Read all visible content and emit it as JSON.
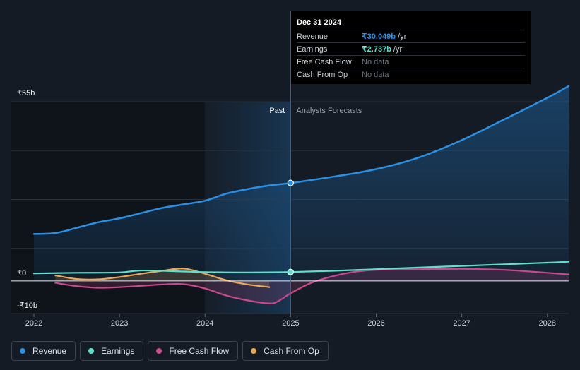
{
  "chart_data": {
    "type": "line",
    "y_axis": {
      "top_label": "₹55b",
      "zero_label": "₹0",
      "bottom_label": "-₹10b",
      "ylim": [
        -10,
        55
      ]
    },
    "x_axis": {
      "ticks": [
        "2022",
        "2023",
        "2024",
        "2025",
        "2026",
        "2027",
        "2028"
      ],
      "xlim": [
        2022.0,
        2028.25
      ]
    },
    "regions": {
      "past_label": "Past",
      "forecast_label": "Analysts Forecasts",
      "divider_x": 2025.0,
      "past_highlight_start": 2024.0
    },
    "series": [
      {
        "name": "Revenue",
        "color": "#2b90e3",
        "fill": true,
        "points": [
          [
            2022.0,
            14.4
          ],
          [
            2022.25,
            14.7
          ],
          [
            2022.5,
            16.3
          ],
          [
            2022.75,
            18.0
          ],
          [
            2023.0,
            19.2
          ],
          [
            2023.25,
            20.8
          ],
          [
            2023.5,
            22.4
          ],
          [
            2023.75,
            23.5
          ],
          [
            2024.0,
            24.6
          ],
          [
            2024.25,
            26.8
          ],
          [
            2024.5,
            28.2
          ],
          [
            2024.75,
            29.3
          ],
          [
            2025.0,
            30.05
          ],
          [
            2025.5,
            32.0
          ],
          [
            2026.0,
            34.3
          ],
          [
            2026.5,
            37.9
          ],
          [
            2027.0,
            43.2
          ],
          [
            2027.5,
            49.6
          ],
          [
            2028.0,
            56.2
          ],
          [
            2028.25,
            59.8
          ]
        ],
        "marker_at": 2025.0
      },
      {
        "name": "Earnings",
        "color": "#5ee0cf",
        "fill": false,
        "points": [
          [
            2022.0,
            2.3
          ],
          [
            2022.5,
            2.5
          ],
          [
            2023.0,
            2.6
          ],
          [
            2023.25,
            3.2
          ],
          [
            2023.75,
            2.9
          ],
          [
            2024.0,
            2.7
          ],
          [
            2024.5,
            2.6
          ],
          [
            2025.0,
            2.74
          ],
          [
            2025.5,
            3.1
          ],
          [
            2026.0,
            3.6
          ],
          [
            2026.5,
            4.1
          ],
          [
            2027.0,
            4.6
          ],
          [
            2027.5,
            5.1
          ],
          [
            2028.0,
            5.6
          ],
          [
            2028.25,
            5.9
          ]
        ],
        "marker_at": 2025.0
      },
      {
        "name": "Free Cash Flow",
        "color": "#c84a8c",
        "fill": true,
        "points": [
          [
            2022.25,
            -0.6
          ],
          [
            2022.5,
            -1.6
          ],
          [
            2022.75,
            -2.1
          ],
          [
            2023.0,
            -1.9
          ],
          [
            2023.25,
            -1.5
          ],
          [
            2023.5,
            -1.1
          ],
          [
            2023.75,
            -1.0
          ],
          [
            2024.0,
            -2.3
          ],
          [
            2024.25,
            -4.5
          ],
          [
            2024.5,
            -6.0
          ],
          [
            2024.75,
            -6.9
          ],
          [
            2024.85,
            -6.3
          ],
          [
            2025.0,
            -3.8
          ],
          [
            2025.25,
            -0.5
          ],
          [
            2025.5,
            1.5
          ],
          [
            2025.75,
            2.8
          ],
          [
            2026.0,
            3.4
          ],
          [
            2026.5,
            3.6
          ],
          [
            2027.0,
            3.7
          ],
          [
            2027.5,
            3.4
          ],
          [
            2028.0,
            2.5
          ],
          [
            2028.25,
            2.0
          ]
        ]
      },
      {
        "name": "Cash From Op",
        "color": "#e9a95c",
        "fill": true,
        "points": [
          [
            2022.25,
            1.7
          ],
          [
            2022.5,
            0.6
          ],
          [
            2022.75,
            0.5
          ],
          [
            2023.0,
            1.2
          ],
          [
            2023.25,
            2.2
          ],
          [
            2023.5,
            3.1
          ],
          [
            2023.75,
            3.8
          ],
          [
            2024.0,
            2.2
          ],
          [
            2024.25,
            0.2
          ],
          [
            2024.5,
            -1.1
          ],
          [
            2024.75,
            -1.9
          ]
        ]
      }
    ]
  },
  "tooltip": {
    "date": "Dec 31 2024",
    "rows": [
      {
        "label": "Revenue",
        "value": "₹30.049b",
        "unit": "/yr",
        "color": "#2b90e3"
      },
      {
        "label": "Earnings",
        "value": "₹2.737b",
        "unit": "/yr",
        "color": "#5ee0cf"
      },
      {
        "label": "Free Cash Flow",
        "value": "No data",
        "unit": ""
      },
      {
        "label": "Cash From Op",
        "value": "No data",
        "unit": ""
      }
    ]
  },
  "legend": [
    {
      "label": "Revenue",
      "color": "#2b90e3"
    },
    {
      "label": "Earnings",
      "color": "#5ee0cf"
    },
    {
      "label": "Free Cash Flow",
      "color": "#c84a8c"
    },
    {
      "label": "Cash From Op",
      "color": "#e9a95c"
    }
  ]
}
